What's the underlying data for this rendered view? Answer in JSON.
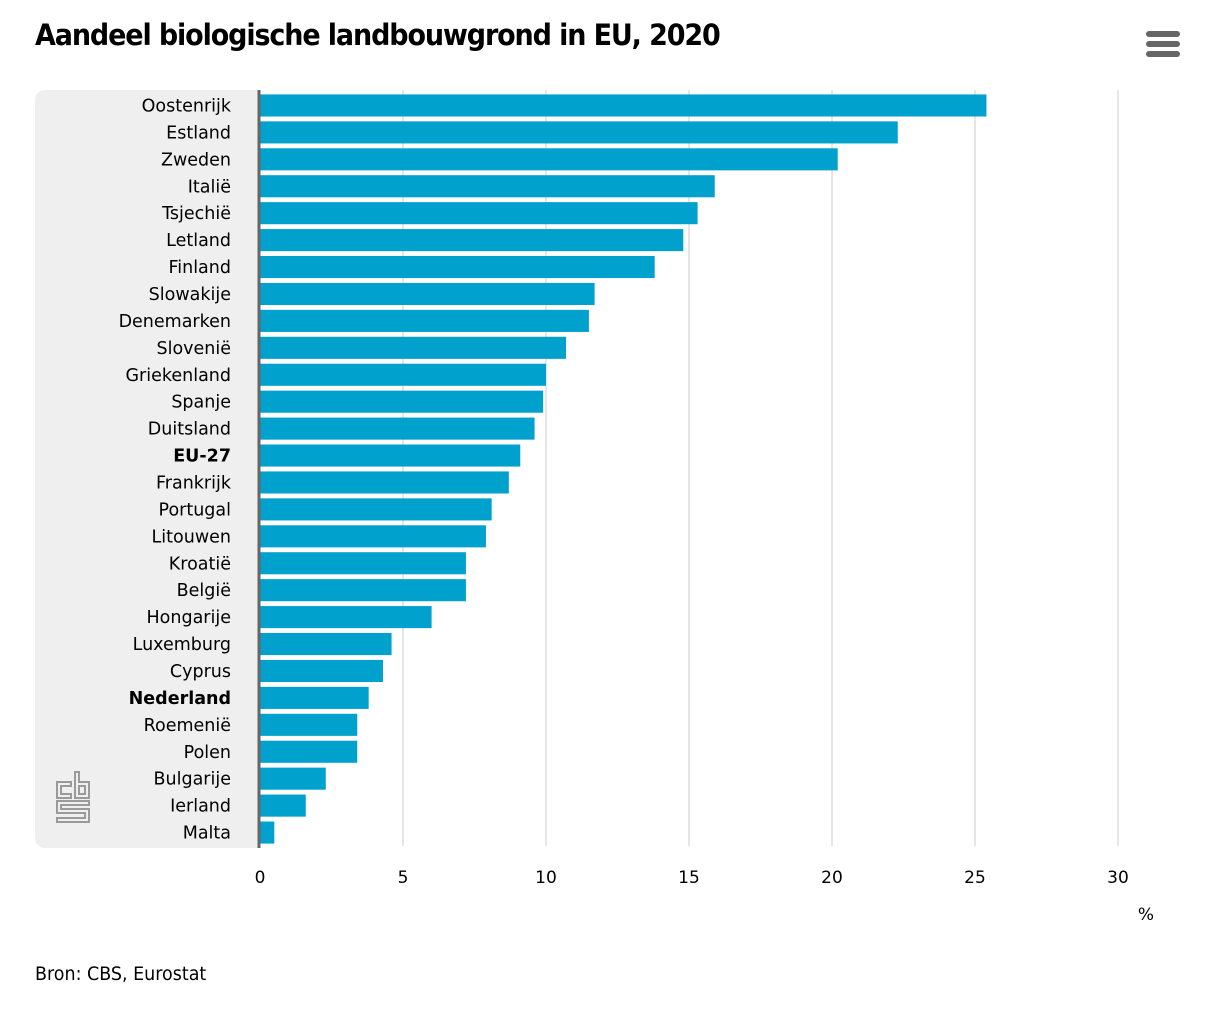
{
  "header": {
    "title": "Aandeel biologische landbouwgrond in EU, 2020",
    "menu_icon": "hamburger-menu-icon"
  },
  "footer": {
    "source": "Bron: CBS, Eurostat"
  },
  "logo": {
    "name": "cbs-logo-icon"
  },
  "colors": {
    "bar": "#00a1cd",
    "panel": "#efefef",
    "axis_line": "#666666",
    "grid": "#cccccc"
  },
  "chart_data": {
    "type": "bar",
    "orientation": "horizontal",
    "title": "Aandeel biologische landbouwgrond in EU, 2020",
    "xlabel": "%",
    "ylabel": "",
    "xlim": [
      0,
      30
    ],
    "x_ticks": [
      "0",
      "5",
      "10",
      "15",
      "20",
      "25",
      "30"
    ],
    "grid": true,
    "legend": "none",
    "bold_categories": [
      "EU-27",
      "Nederland"
    ],
    "categories": [
      "Oostenrijk",
      "Estland",
      "Zweden",
      "Italië",
      "Tsjechië",
      "Letland",
      "Finland",
      "Slowakije",
      "Denemarken",
      "Slovenië",
      "Griekenland",
      "Spanje",
      "Duitsland",
      "EU-27",
      "Frankrijk",
      "Portugal",
      "Litouwen",
      "Kroatië",
      "België",
      "Hongarije",
      "Luxemburg",
      "Cyprus",
      "Nederland",
      "Roemenië",
      "Polen",
      "Bulgarije",
      "Ierland",
      "Malta"
    ],
    "values": [
      25.4,
      22.3,
      20.2,
      15.9,
      15.3,
      14.8,
      13.8,
      11.7,
      11.5,
      10.7,
      10.0,
      9.9,
      9.6,
      9.1,
      8.7,
      8.1,
      7.9,
      7.2,
      7.2,
      6.0,
      4.6,
      4.3,
      3.8,
      3.4,
      3.4,
      2.3,
      1.6,
      0.5
    ]
  }
}
